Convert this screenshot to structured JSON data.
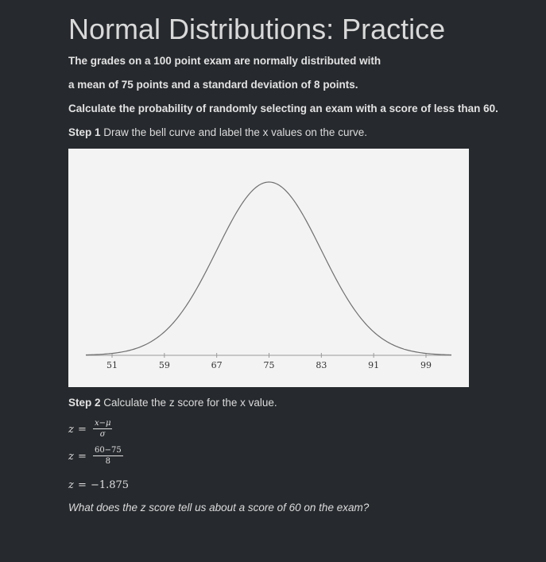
{
  "title": "Normal Distributions: Practice",
  "problem": {
    "line1": "The grades on a 100 point exam are normally distributed with",
    "line2": "a mean of 75 points and a standard deviation of 8 points.",
    "line3": "Calculate the probability of randomly selecting an exam with a score of less than 60."
  },
  "step1": {
    "label": "Step 1",
    "text": " Draw the bell curve and label the x values on the curve."
  },
  "step2": {
    "label": "Step 2",
    "text": " Calculate the z score for the x value."
  },
  "formula": {
    "z": "z",
    "equals": "=",
    "numerator": "x−μ",
    "denominator": "σ"
  },
  "substitution": {
    "z": "z",
    "equals": "=",
    "numerator": "60−75",
    "denominator": "8"
  },
  "result": {
    "z": "z",
    "equals": "=",
    "value": "−1.875"
  },
  "question": "What does the z score tell us about a score of 60 on the exam?",
  "chart_data": {
    "type": "line",
    "title": "",
    "xlabel": "",
    "ylabel": "",
    "mean": 75,
    "sd": 8,
    "xlim": [
      46,
      104
    ],
    "tick_labels": [
      "51",
      "59",
      "67",
      "75",
      "83",
      "91",
      "99"
    ],
    "tick_values": [
      51,
      59,
      67,
      75,
      83,
      91,
      99
    ],
    "grid": false,
    "legend": "none",
    "curve_color": "#6f6f6f",
    "axis_color": "#9a9a9a"
  }
}
